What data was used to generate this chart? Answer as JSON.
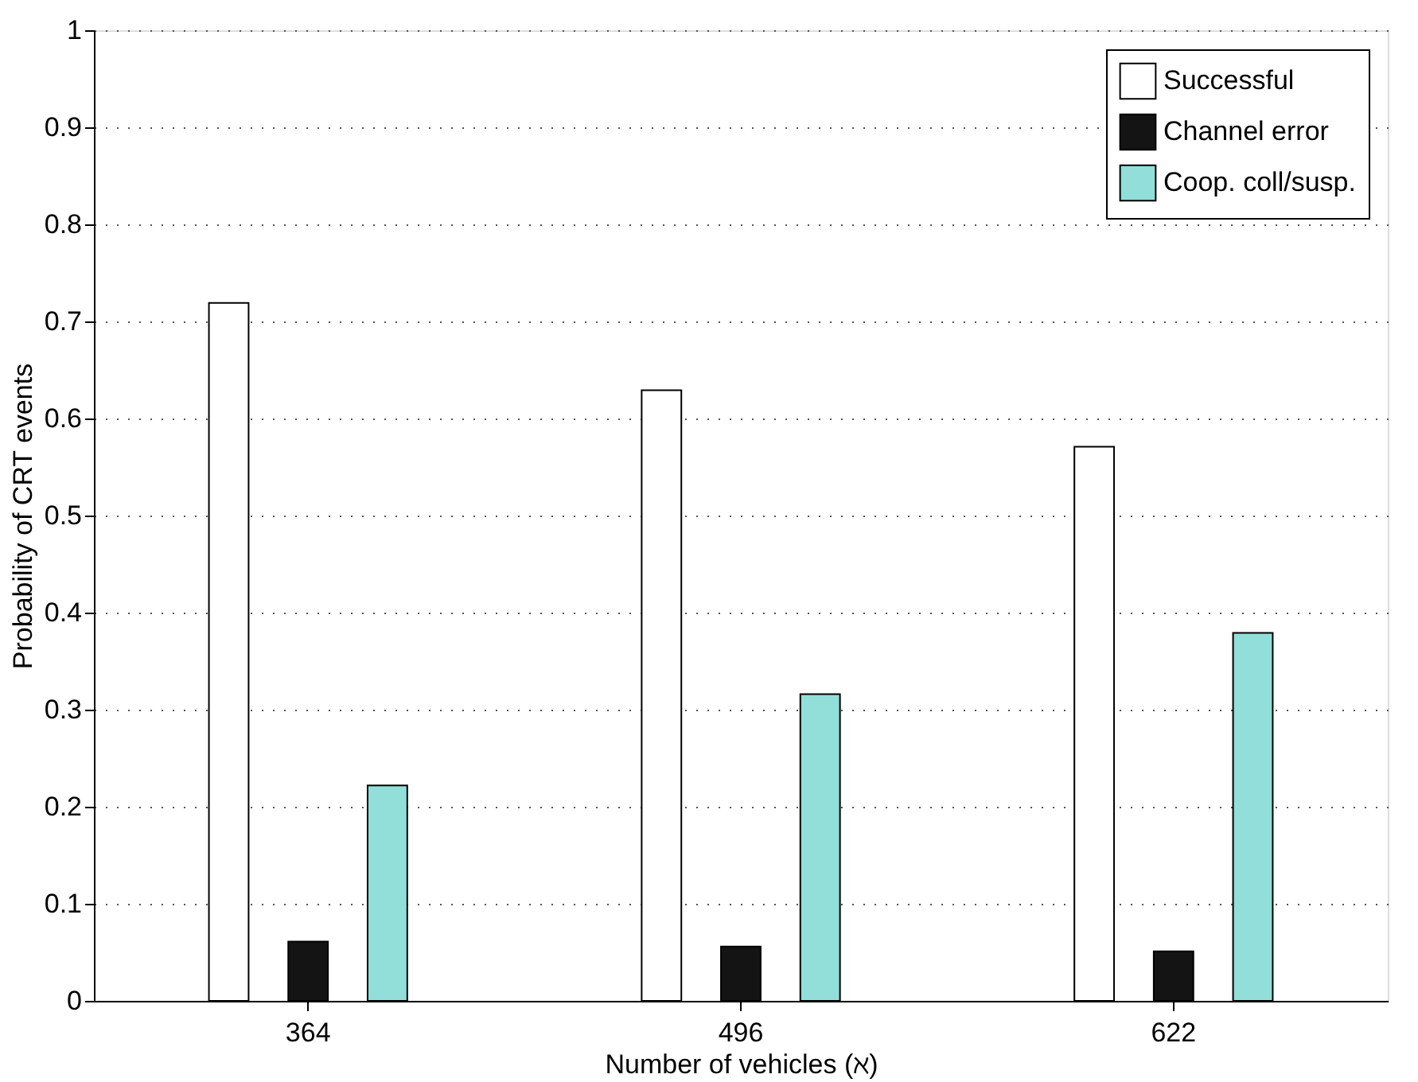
{
  "chart_data": {
    "type": "bar",
    "xlabel": "Number of vehicles (ℵ)",
    "ylabel": "Probability of CRT events",
    "categories": [
      "364",
      "496",
      "622"
    ],
    "series": [
      {
        "name": "Successful",
        "color": "#ffffff",
        "values": [
          0.719,
          0.629,
          0.571
        ]
      },
      {
        "name": "Channel error",
        "color": "#141414",
        "values": [
          0.061,
          0.056,
          0.051
        ]
      },
      {
        "name": "Coop. coll/susp.",
        "color": "#91dfd8",
        "values": [
          0.222,
          0.316,
          0.379
        ]
      }
    ],
    "ylim": [
      0,
      1
    ],
    "yticks": [
      0,
      0.1,
      0.2,
      0.3,
      0.4,
      0.5,
      0.6,
      0.7,
      0.8,
      0.9,
      1
    ],
    "grid": "y",
    "legend": "top right"
  }
}
